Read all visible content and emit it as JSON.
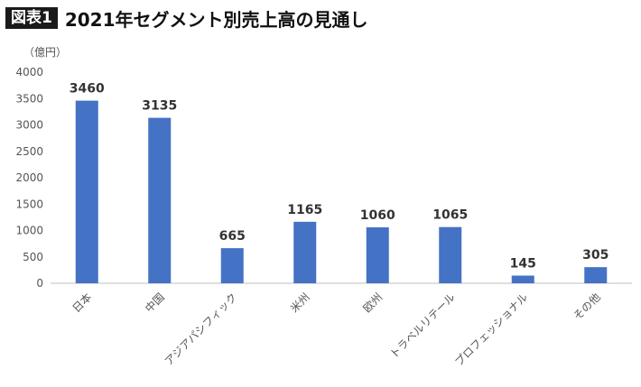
{
  "header": {
    "badge": "図表1",
    "title": "2021年セグメント別売上高の見通し"
  },
  "chart_data": {
    "type": "bar",
    "unit_label": "（億円）",
    "categories": [
      "日本",
      "中国",
      "アジアパシフィック",
      "米州",
      "欧州",
      "トラベルリテール",
      "プロフェッショナル",
      "その他"
    ],
    "values": [
      3460,
      3135,
      665,
      1165,
      1060,
      1065,
      145,
      305
    ],
    "ylim": [
      0,
      4000
    ],
    "yticks": [
      0,
      500,
      1000,
      1500,
      2000,
      2500,
      3000,
      3500,
      4000
    ],
    "bar_color": "#4472C4",
    "grid": false,
    "legend": "none"
  }
}
